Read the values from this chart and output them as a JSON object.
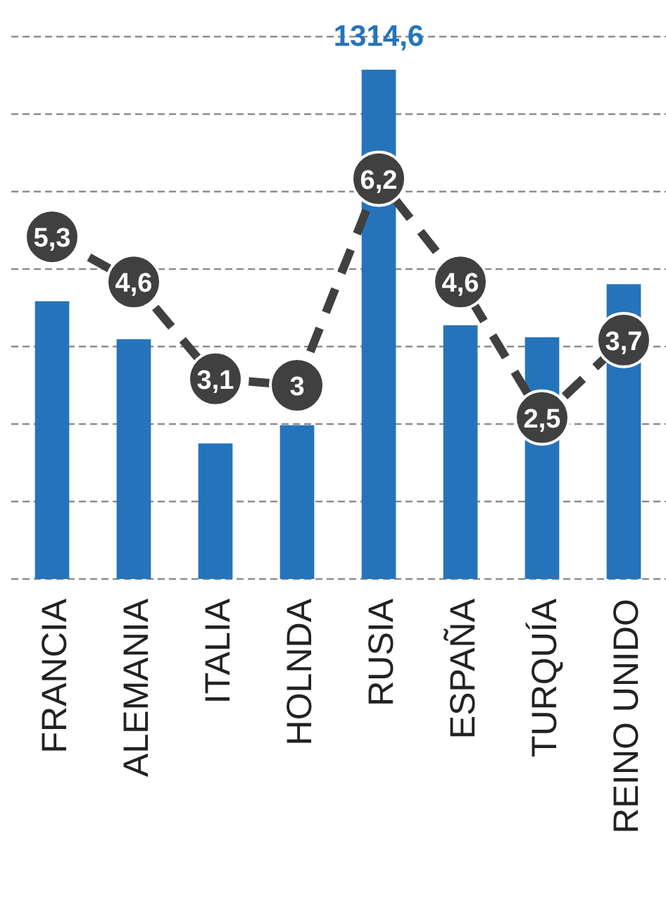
{
  "chart_data": {
    "type": "bar",
    "categories": [
      "FRANCIA",
      "ALEMANIA",
      "ITALIA",
      "HOLNDA",
      "RUSIA",
      "ESPAÑA",
      "TURQUÍA",
      "REINO UNIDO"
    ],
    "series": [
      {
        "color": "#2574bb",
        "values": [
          717,
          619,
          350,
          397,
          1314.6,
          655,
          624,
          761
        ],
        "value_labels": [
          null,
          null,
          null,
          null,
          "1314,6",
          null,
          null,
          null
        ]
      },
      {
        "type": "line",
        "axis": "y2",
        "color": "#404040",
        "values": [
          5.3,
          4.6,
          3.1,
          3,
          6.2,
          4.6,
          2.5,
          3.7
        ],
        "value_labels": [
          "5,3",
          "4,6",
          "3,1",
          "3",
          "6,2",
          "4,6",
          "2,5",
          "3,7"
        ]
      }
    ],
    "ylim": [
      0,
      1400
    ],
    "yticks": [
      {
        "value": 0,
        "label": null
      },
      {
        "value": 200,
        "label": null
      },
      {
        "value": 400,
        "label": null
      },
      {
        "value": 600,
        "label": null
      },
      {
        "value": 800,
        "label": null
      },
      {
        "value": 1000,
        "label": null
      },
      {
        "value": 1200,
        "label": null
      },
      {
        "value": 1400,
        "label": null
      }
    ],
    "y2lim": [
      0,
      8.4
    ],
    "grid": true,
    "marker": "circle",
    "line_style": "dashed"
  }
}
